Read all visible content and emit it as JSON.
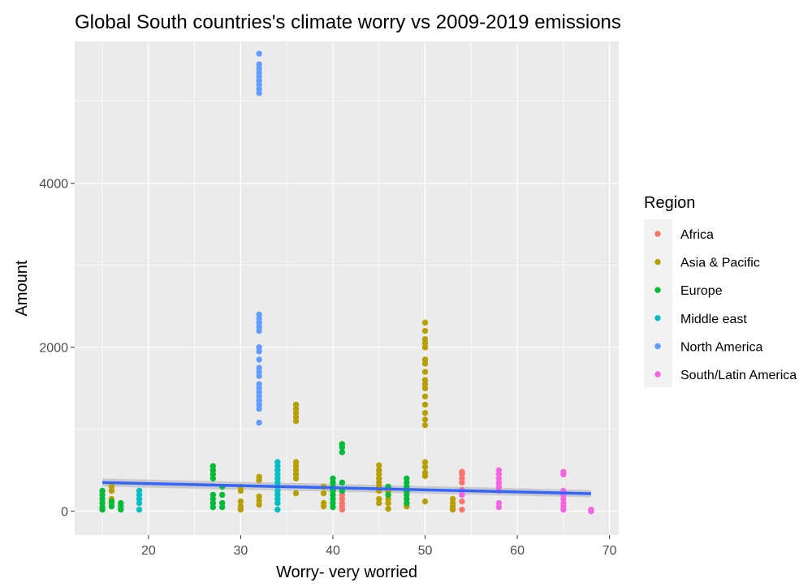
{
  "chart_data": {
    "type": "scatter",
    "title": "Global South countries's climate worry vs 2009-2019 emissions",
    "xlabel": "Worry- very worried",
    "ylabel": "Amount",
    "xlim": [
      12,
      71
    ],
    "ylim": [
      -290,
      5730
    ],
    "xticks": [
      20,
      30,
      40,
      50,
      60,
      70
    ],
    "yticks": [
      0,
      2000,
      4000
    ],
    "grid": true,
    "legend": {
      "title": "Region",
      "position": "right"
    },
    "series": [
      {
        "name": "Africa",
        "color": "#F8766D",
        "points": [
          [
            41,
            20
          ],
          [
            41,
            60
          ],
          [
            41,
            100
          ],
          [
            41,
            150
          ],
          [
            41,
            200
          ],
          [
            54,
            20
          ],
          [
            54,
            120
          ],
          [
            54,
            200
          ],
          [
            54,
            260
          ],
          [
            54,
            350
          ],
          [
            54,
            400
          ],
          [
            54,
            450
          ],
          [
            54,
            480
          ]
        ]
      },
      {
        "name": "Asia & Pacific",
        "color": "#B79F00",
        "points": [
          [
            16,
            100
          ],
          [
            16,
            150
          ],
          [
            16,
            250
          ],
          [
            16,
            300
          ],
          [
            30,
            20
          ],
          [
            30,
            60
          ],
          [
            30,
            120
          ],
          [
            30,
            250
          ],
          [
            30,
            300
          ],
          [
            32,
            80
          ],
          [
            32,
            130
          ],
          [
            32,
            180
          ],
          [
            32,
            380
          ],
          [
            32,
            420
          ],
          [
            36,
            220
          ],
          [
            36,
            400
          ],
          [
            36,
            450
          ],
          [
            36,
            500
          ],
          [
            36,
            550
          ],
          [
            36,
            600
          ],
          [
            36,
            1100
          ],
          [
            36,
            1150
          ],
          [
            36,
            1200
          ],
          [
            36,
            1250
          ],
          [
            36,
            1300
          ],
          [
            39,
            60
          ],
          [
            39,
            100
          ],
          [
            39,
            220
          ],
          [
            39,
            300
          ],
          [
            45,
            100
          ],
          [
            45,
            150
          ],
          [
            45,
            250
          ],
          [
            45,
            300
          ],
          [
            45,
            350
          ],
          [
            45,
            400
          ],
          [
            45,
            450
          ],
          [
            45,
            500
          ],
          [
            45,
            560
          ],
          [
            46,
            30
          ],
          [
            46,
            100
          ],
          [
            46,
            150
          ],
          [
            46,
            250
          ],
          [
            48,
            60
          ],
          [
            48,
            100
          ],
          [
            48,
            150
          ],
          [
            48,
            230
          ],
          [
            50,
            120
          ],
          [
            50,
            430
          ],
          [
            50,
            470
          ],
          [
            50,
            540
          ],
          [
            50,
            600
          ],
          [
            50,
            1050
          ],
          [
            50,
            1120
          ],
          [
            50,
            1200
          ],
          [
            50,
            1300
          ],
          [
            50,
            1400
          ],
          [
            50,
            1500
          ],
          [
            50,
            1550
          ],
          [
            50,
            1600
          ],
          [
            50,
            1700
          ],
          [
            50,
            1800
          ],
          [
            50,
            1850
          ],
          [
            50,
            2000
          ],
          [
            50,
            2050
          ],
          [
            50,
            2100
          ],
          [
            50,
            2200
          ],
          [
            50,
            2300
          ],
          [
            53,
            20
          ],
          [
            53,
            60
          ],
          [
            53,
            100
          ],
          [
            53,
            150
          ]
        ]
      },
      {
        "name": "Europe",
        "color": "#00BA38",
        "points": [
          [
            15,
            20
          ],
          [
            15,
            50
          ],
          [
            15,
            100
          ],
          [
            15,
            150
          ],
          [
            15,
            200
          ],
          [
            15,
            250
          ],
          [
            16,
            60
          ],
          [
            16,
            120
          ],
          [
            17,
            20
          ],
          [
            17,
            60
          ],
          [
            17,
            100
          ],
          [
            27,
            50
          ],
          [
            27,
            100
          ],
          [
            27,
            150
          ],
          [
            27,
            200
          ],
          [
            27,
            400
          ],
          [
            27,
            450
          ],
          [
            27,
            500
          ],
          [
            27,
            550
          ],
          [
            28,
            50
          ],
          [
            28,
            100
          ],
          [
            28,
            200
          ],
          [
            28,
            300
          ],
          [
            34,
            100
          ],
          [
            34,
            150
          ],
          [
            34,
            200
          ],
          [
            40,
            50
          ],
          [
            40,
            100
          ],
          [
            40,
            150
          ],
          [
            40,
            200
          ],
          [
            40,
            250
          ],
          [
            40,
            300
          ],
          [
            40,
            350
          ],
          [
            40,
            400
          ],
          [
            41,
            250
          ],
          [
            41,
            350
          ],
          [
            41,
            720
          ],
          [
            41,
            780
          ],
          [
            41,
            820
          ],
          [
            46,
            200
          ],
          [
            46,
            300
          ],
          [
            48,
            100
          ],
          [
            48,
            150
          ],
          [
            48,
            200
          ],
          [
            48,
            250
          ],
          [
            48,
            300
          ],
          [
            48,
            350
          ],
          [
            48,
            400
          ]
        ]
      },
      {
        "name": "Middle east",
        "color": "#00BFC4",
        "points": [
          [
            19,
            20
          ],
          [
            19,
            100
          ],
          [
            19,
            150
          ],
          [
            19,
            200
          ],
          [
            19,
            250
          ],
          [
            34,
            20
          ],
          [
            34,
            100
          ],
          [
            34,
            150
          ],
          [
            34,
            200
          ],
          [
            34,
            250
          ],
          [
            34,
            300
          ],
          [
            34,
            350
          ],
          [
            34,
            400
          ],
          [
            34,
            450
          ],
          [
            34,
            500
          ],
          [
            34,
            550
          ],
          [
            34,
            600
          ]
        ]
      },
      {
        "name": "North America",
        "color": "#619CFF",
        "points": [
          [
            32,
            1080
          ],
          [
            32,
            1250
          ],
          [
            32,
            1300
          ],
          [
            32,
            1350
          ],
          [
            32,
            1400
          ],
          [
            32,
            1450
          ],
          [
            32,
            1500
          ],
          [
            32,
            1550
          ],
          [
            32,
            1650
          ],
          [
            32,
            1700
          ],
          [
            32,
            1750
          ],
          [
            32,
            1850
          ],
          [
            32,
            1950
          ],
          [
            32,
            2000
          ],
          [
            32,
            2200
          ],
          [
            32,
            2250
          ],
          [
            32,
            2300
          ],
          [
            32,
            2350
          ],
          [
            32,
            2400
          ],
          [
            32,
            5100
          ],
          [
            32,
            5150
          ],
          [
            32,
            5200
          ],
          [
            32,
            5250
          ],
          [
            32,
            5300
          ],
          [
            32,
            5350
          ],
          [
            32,
            5400
          ],
          [
            32,
            5450
          ],
          [
            32,
            5580
          ]
        ]
      },
      {
        "name": "South/Latin America",
        "color": "#F564E3",
        "points": [
          [
            54,
            200
          ],
          [
            54,
            250
          ],
          [
            58,
            50
          ],
          [
            58,
            100
          ],
          [
            58,
            250
          ],
          [
            58,
            300
          ],
          [
            58,
            350
          ],
          [
            58,
            400
          ],
          [
            58,
            450
          ],
          [
            58,
            500
          ],
          [
            65,
            20
          ],
          [
            65,
            60
          ],
          [
            65,
            100
          ],
          [
            65,
            150
          ],
          [
            65,
            200
          ],
          [
            65,
            250
          ],
          [
            65,
            450
          ],
          [
            65,
            480
          ],
          [
            68,
            0
          ],
          [
            68,
            20
          ]
        ]
      }
    ],
    "trend": {
      "color": "#3366FF",
      "ribbon_color": "#999999",
      "x": [
        15,
        68
      ],
      "y": [
        350,
        215
      ],
      "ribbon_lower": [
        300,
        170
      ],
      "ribbon_upper": [
        400,
        260
      ]
    }
  }
}
